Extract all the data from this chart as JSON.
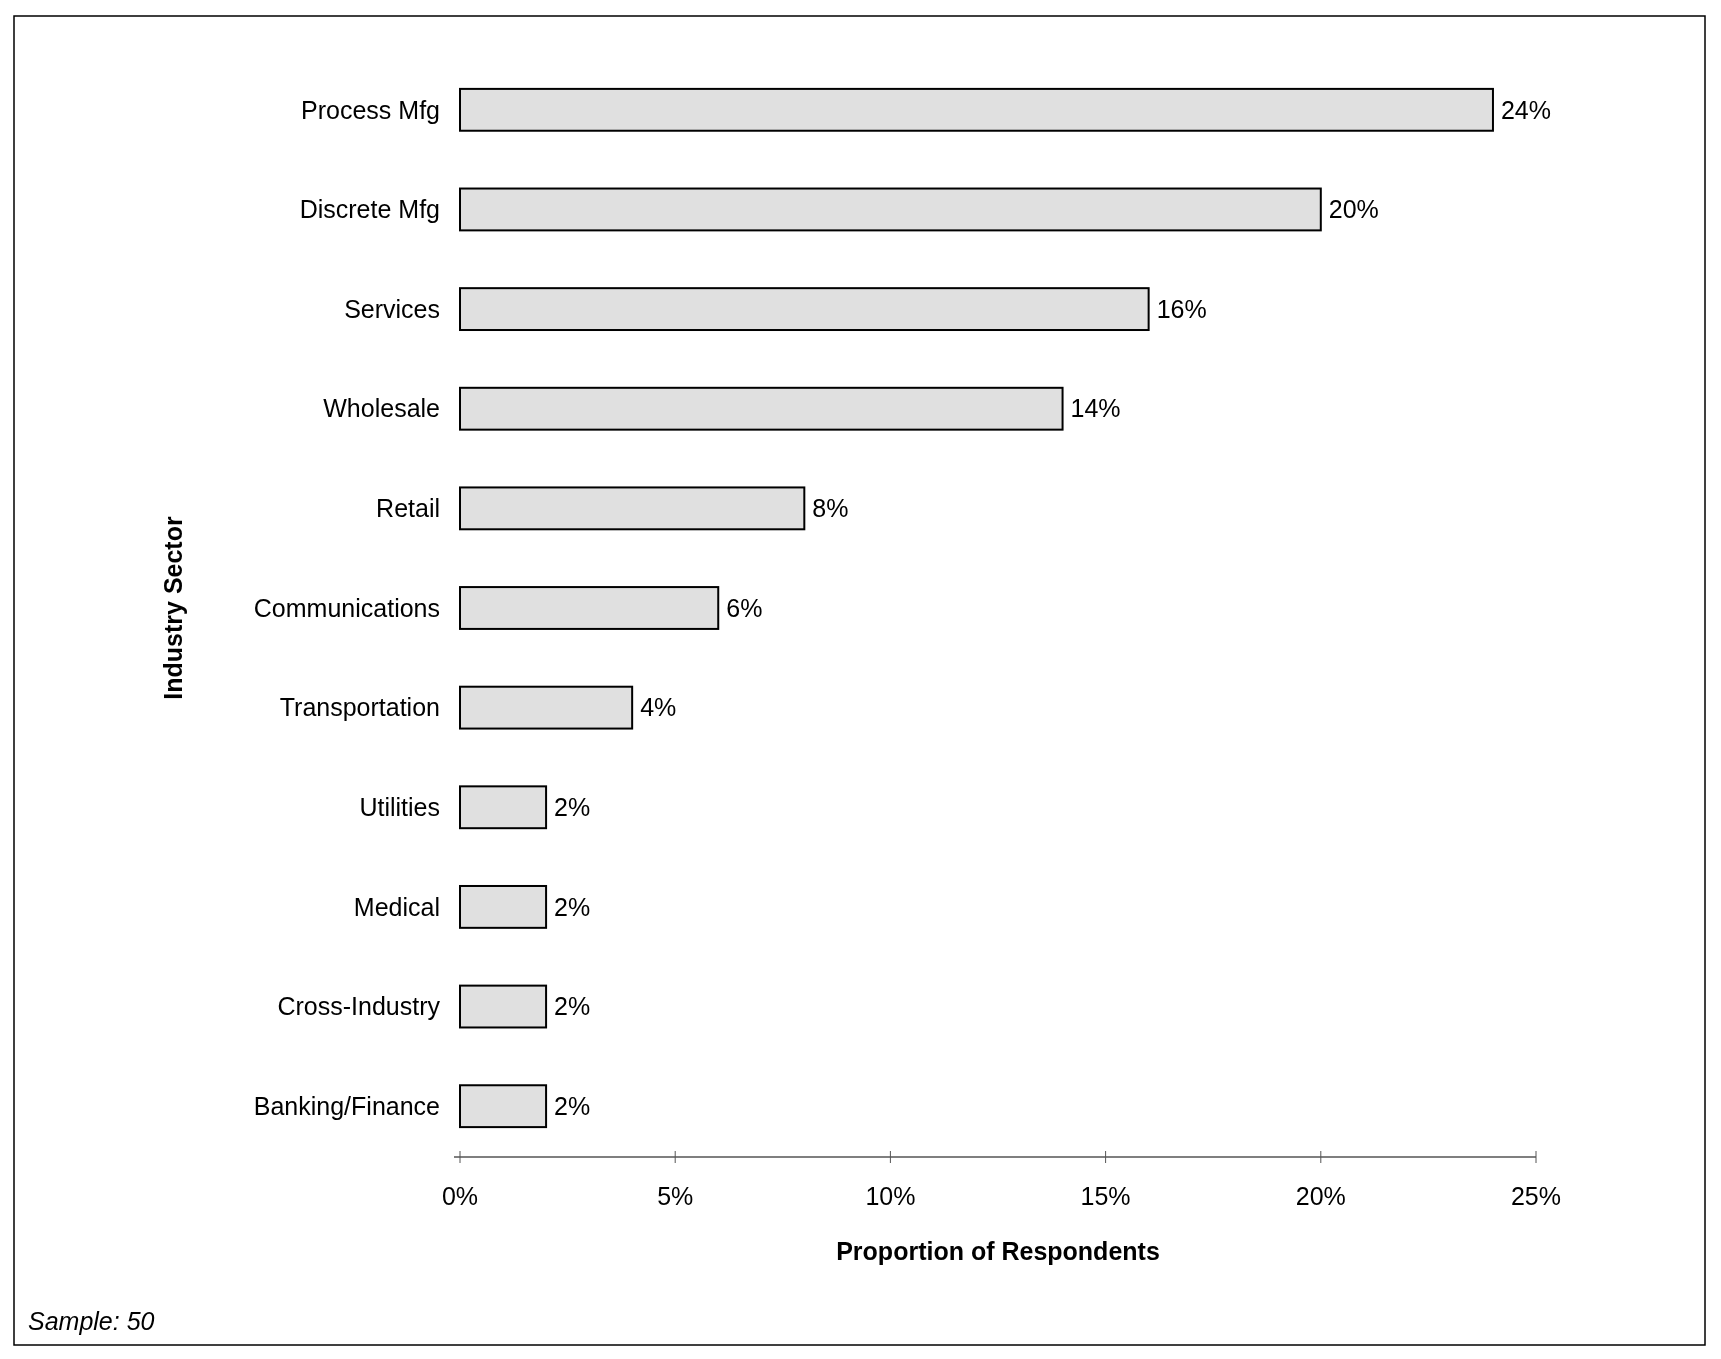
{
  "chart_data": {
    "type": "bar",
    "orientation": "horizontal",
    "ylabel": "Industry Sector",
    "xlabel": "Proportion of Respondents",
    "categories": [
      "Process Mfg",
      "Discrete Mfg",
      "Services",
      "Wholesale",
      "Retail",
      "Communications",
      "Transportation",
      "Utilities",
      "Medical",
      "Cross-Industry",
      "Banking/Finance"
    ],
    "values": [
      24,
      20,
      16,
      14,
      8,
      6,
      4,
      2,
      2,
      2,
      2
    ],
    "value_labels": [
      "24%",
      "20%",
      "16%",
      "14%",
      "8%",
      "6%",
      "4%",
      "2%",
      "2%",
      "2%",
      "2%"
    ],
    "color": "#e0e0e0",
    "xlim": [
      0,
      25
    ],
    "xticks": [
      {
        "value": 0,
        "label": "0%"
      },
      {
        "value": 5,
        "label": "5%"
      },
      {
        "value": 10,
        "label": "10%"
      },
      {
        "value": 15,
        "label": "15%"
      },
      {
        "value": 20,
        "label": "20%"
      },
      {
        "value": 25,
        "label": "25%"
      }
    ],
    "grid": false,
    "annotations": [
      "Sample: 50"
    ]
  }
}
